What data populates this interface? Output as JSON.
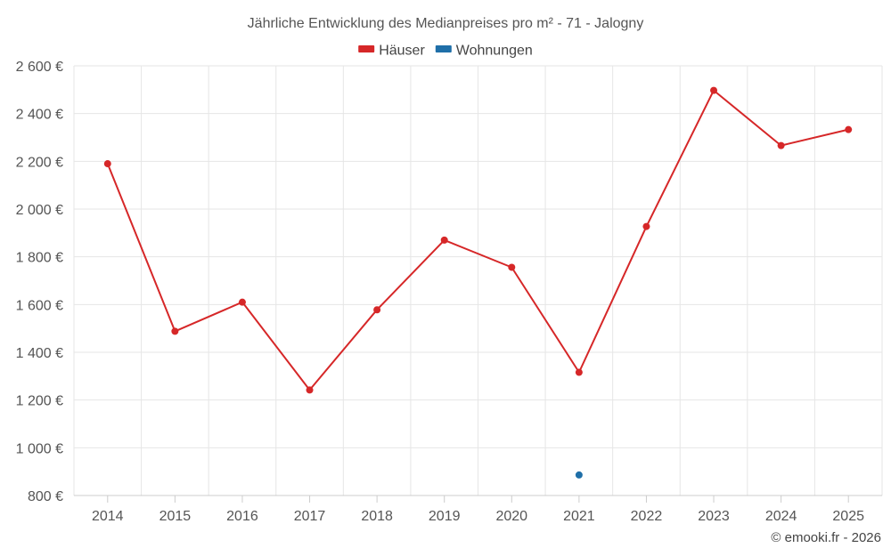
{
  "chart_data": {
    "type": "line",
    "title": "Jährliche Entwicklung des Medianpreises pro m² - 71 - Jalogny",
    "categories": [
      "2014",
      "2015",
      "2016",
      "2017",
      "2018",
      "2019",
      "2020",
      "2021",
      "2022",
      "2023",
      "2024",
      "2025"
    ],
    "series": [
      {
        "name": "Häuser",
        "color": "#d62728",
        "values": [
          2190,
          1488,
          1610,
          1242,
          1578,
          1870,
          1756,
          1316,
          1927,
          2497,
          2266,
          2333
        ]
      },
      {
        "name": "Wohnungen",
        "color": "#1f6fa8",
        "values": [
          null,
          null,
          null,
          null,
          null,
          null,
          null,
          886,
          null,
          null,
          null,
          null
        ]
      }
    ],
    "ylim": [
      800,
      2600
    ],
    "yticks": [
      800,
      1000,
      1200,
      1400,
      1600,
      1800,
      2000,
      2200,
      2400,
      2600
    ],
    "ytick_labels": [
      "800 €",
      "1 000 €",
      "1 200 €",
      "1 400 €",
      "1 600 €",
      "1 800 €",
      "2 000 €",
      "2 200 €",
      "2 400 €",
      "2 600 €"
    ],
    "grid": true,
    "legend_position": "top-center",
    "xlabel": "",
    "ylabel": ""
  },
  "credit": "© emooki.fr - 2026"
}
